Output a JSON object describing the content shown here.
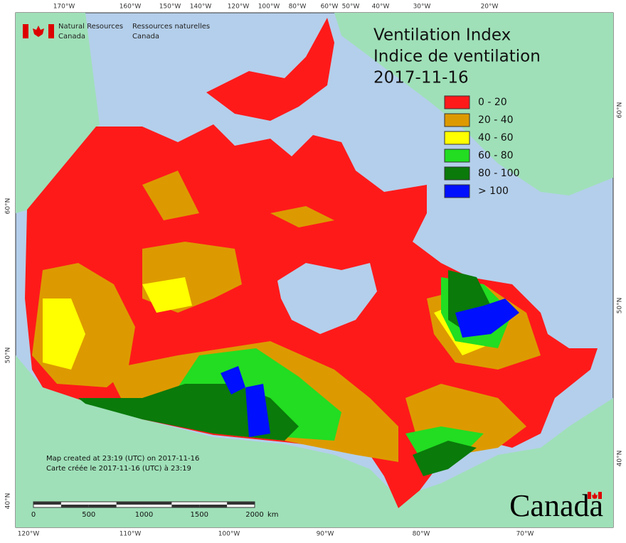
{
  "header": {
    "agency_en": [
      "Natural Resources",
      "Canada"
    ],
    "agency_fr": [
      "Ressources naturelles",
      "Canada"
    ]
  },
  "title": [
    "Ventilation Index",
    "Indice de ventilation",
    "2017-11-16"
  ],
  "legend": [
    {
      "label": "0 - 20",
      "color": "#ff1a1a"
    },
    {
      "label": "20 - 40",
      "color": "#dd9a00"
    },
    {
      "label": "40 - 60",
      "color": "#ffff00"
    },
    {
      "label": "60 - 80",
      "color": "#22dd22"
    },
    {
      "label": "80 - 100",
      "color": "#0a7a0a"
    },
    {
      "label": "> 100",
      "color": "#0010ff"
    }
  ],
  "top_axis": [
    "170°W",
    "160°W",
    "150°W",
    "140°W",
    "120°W",
    "100°W",
    "80°W",
    "60°W",
    "50°W",
    "40°W",
    "30°W",
    "20°W"
  ],
  "bottom_axis": [
    "120°W",
    "110°W",
    "100°W",
    "90°W",
    "80°W",
    "70°W"
  ],
  "left_axis": [
    "60°N",
    "50°N",
    "40°N"
  ],
  "right_axis": [
    "60°N",
    "50°N",
    "40°N"
  ],
  "notes": [
    "Map created at 23:19 (UTC) on 2017-11-16",
    "Carte créée le 2017-11-16 (UTC) à 23:19"
  ],
  "scale_bar": {
    "ticks": [
      "0",
      "500",
      "1000",
      "1500",
      "2000"
    ],
    "unit": "km"
  },
  "wordmark": "Canada"
}
